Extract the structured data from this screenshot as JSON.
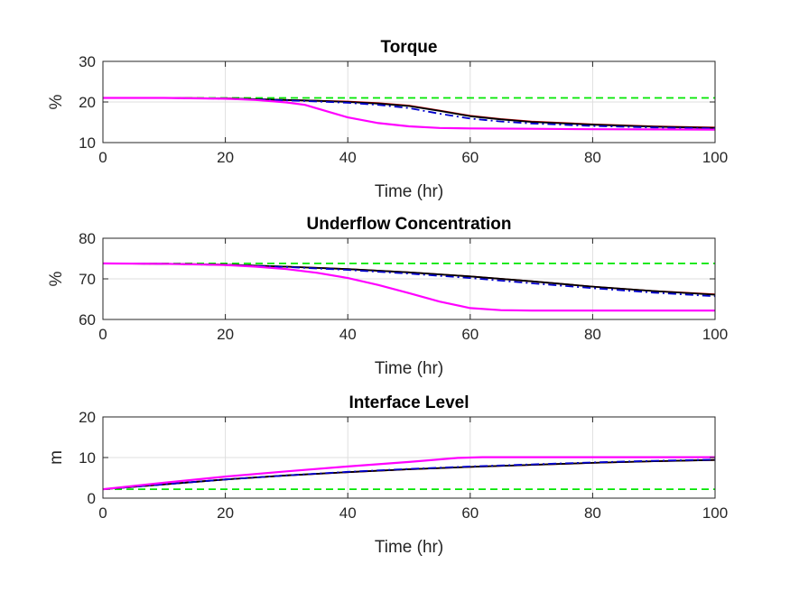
{
  "chart_data": [
    {
      "type": "line",
      "title": "Torque",
      "xlabel": "Time (hr)",
      "ylabel": "%",
      "xlim": [
        0,
        100
      ],
      "ylim": [
        10,
        30
      ],
      "xticks": [
        0,
        20,
        40,
        60,
        80,
        100
      ],
      "yticks": [
        10,
        20,
        30
      ],
      "grid": true,
      "series": [
        {
          "color": "#00e600",
          "style": "dashed",
          "x": [
            0,
            100
          ],
          "y": [
            21,
            21
          ]
        },
        {
          "color": "#cc0000",
          "style": "solid",
          "x": [
            0,
            10,
            20,
            30,
            35,
            40,
            45,
            50,
            55,
            60,
            65,
            70,
            80,
            90,
            100
          ],
          "y": [
            21,
            21,
            20.9,
            20.5,
            20.3,
            20.1,
            19.7,
            19.1,
            17.9,
            16.6,
            15.8,
            15.2,
            14.5,
            14.0,
            13.7
          ]
        },
        {
          "color": "#000000",
          "style": "solid",
          "x": [
            0,
            10,
            20,
            30,
            35,
            40,
            45,
            50,
            55,
            60,
            65,
            70,
            80,
            90,
            100
          ],
          "y": [
            21,
            21,
            20.9,
            20.5,
            20.3,
            20.0,
            19.6,
            19.0,
            17.8,
            16.5,
            15.7,
            15.1,
            14.4,
            13.9,
            13.6
          ]
        },
        {
          "color": "#0000cc",
          "style": "dashdot",
          "x": [
            0,
            10,
            20,
            30,
            35,
            40,
            45,
            50,
            55,
            60,
            65,
            70,
            80,
            90,
            100
          ],
          "y": [
            21,
            21,
            20.8,
            20.4,
            20.1,
            19.8,
            19.3,
            18.5,
            17.1,
            15.9,
            15.2,
            14.7,
            14.1,
            13.7,
            13.5
          ]
        },
        {
          "color": "#ff00ff",
          "style": "solid",
          "x": [
            0,
            10,
            20,
            25,
            30,
            33,
            35,
            40,
            45,
            50,
            55,
            60,
            70,
            80,
            100
          ],
          "y": [
            21,
            21,
            20.8,
            20.5,
            19.9,
            19.3,
            18.4,
            16.2,
            14.8,
            14.0,
            13.6,
            13.5,
            13.4,
            13.3,
            13.2
          ]
        }
      ]
    },
    {
      "type": "line",
      "title": "Underflow Concentration",
      "xlabel": "Time (hr)",
      "ylabel": "%",
      "xlim": [
        0,
        100
      ],
      "ylim": [
        60,
        80
      ],
      "xticks": [
        0,
        20,
        40,
        60,
        80,
        100
      ],
      "yticks": [
        60,
        70,
        80
      ],
      "grid": true,
      "series": [
        {
          "color": "#00e600",
          "style": "dashed",
          "x": [
            0,
            100
          ],
          "y": [
            73.8,
            73.8
          ]
        },
        {
          "color": "#cc0000",
          "style": "solid",
          "x": [
            0,
            10,
            20,
            30,
            40,
            50,
            60,
            70,
            80,
            90,
            100
          ],
          "y": [
            73.8,
            73.7,
            73.5,
            73.0,
            72.4,
            71.6,
            70.6,
            69.4,
            68.1,
            67.0,
            66.2
          ]
        },
        {
          "color": "#000000",
          "style": "solid",
          "x": [
            0,
            10,
            20,
            30,
            40,
            50,
            60,
            70,
            80,
            90,
            100
          ],
          "y": [
            73.8,
            73.7,
            73.5,
            73.0,
            72.4,
            71.6,
            70.6,
            69.4,
            68.1,
            67.0,
            66.1
          ]
        },
        {
          "color": "#0000cc",
          "style": "dashdot",
          "x": [
            0,
            10,
            20,
            30,
            40,
            50,
            60,
            70,
            80,
            90,
            100
          ],
          "y": [
            73.8,
            73.7,
            73.4,
            72.9,
            72.2,
            71.3,
            70.2,
            68.9,
            67.7,
            66.6,
            65.7
          ]
        },
        {
          "color": "#ff00ff",
          "style": "solid",
          "x": [
            0,
            10,
            20,
            25,
            30,
            35,
            40,
            45,
            50,
            55,
            60,
            65,
            70,
            80,
            100
          ],
          "y": [
            73.8,
            73.7,
            73.4,
            73.0,
            72.4,
            71.5,
            70.2,
            68.5,
            66.5,
            64.4,
            62.8,
            62.3,
            62.2,
            62.2,
            62.2
          ]
        }
      ]
    },
    {
      "type": "line",
      "title": "Interface Level",
      "xlabel": "Time (hr)",
      "ylabel": "m",
      "xlim": [
        0,
        100
      ],
      "ylim": [
        0,
        20
      ],
      "xticks": [
        0,
        20,
        40,
        60,
        80,
        100
      ],
      "yticks": [
        0,
        10,
        20
      ],
      "grid": true,
      "series": [
        {
          "color": "#00e600",
          "style": "dashed",
          "x": [
            0,
            100
          ],
          "y": [
            2.2,
            2.2
          ]
        },
        {
          "color": "#cc0000",
          "style": "solid",
          "x": [
            0,
            10,
            20,
            30,
            40,
            50,
            60,
            70,
            80,
            90,
            100
          ],
          "y": [
            2.2,
            3.4,
            4.6,
            5.6,
            6.4,
            7.1,
            7.7,
            8.2,
            8.7,
            9.1,
            9.4
          ]
        },
        {
          "color": "#000000",
          "style": "solid",
          "x": [
            0,
            10,
            20,
            30,
            40,
            50,
            60,
            70,
            80,
            90,
            100
          ],
          "y": [
            2.2,
            3.4,
            4.6,
            5.6,
            6.4,
            7.1,
            7.7,
            8.2,
            8.7,
            9.1,
            9.4
          ]
        },
        {
          "color": "#0000cc",
          "style": "dashdot",
          "x": [
            0,
            10,
            20,
            30,
            40,
            50,
            60,
            70,
            80,
            90,
            100
          ],
          "y": [
            2.2,
            3.4,
            4.6,
            5.6,
            6.5,
            7.2,
            7.8,
            8.3,
            8.8,
            9.2,
            9.5
          ]
        },
        {
          "color": "#ff00ff",
          "style": "solid",
          "x": [
            0,
            10,
            20,
            30,
            40,
            50,
            58,
            62,
            70,
            80,
            90,
            100
          ],
          "y": [
            2.2,
            3.8,
            5.3,
            6.6,
            7.8,
            8.9,
            9.9,
            10.1,
            10.1,
            10.1,
            10.1,
            10.1
          ]
        }
      ]
    }
  ]
}
